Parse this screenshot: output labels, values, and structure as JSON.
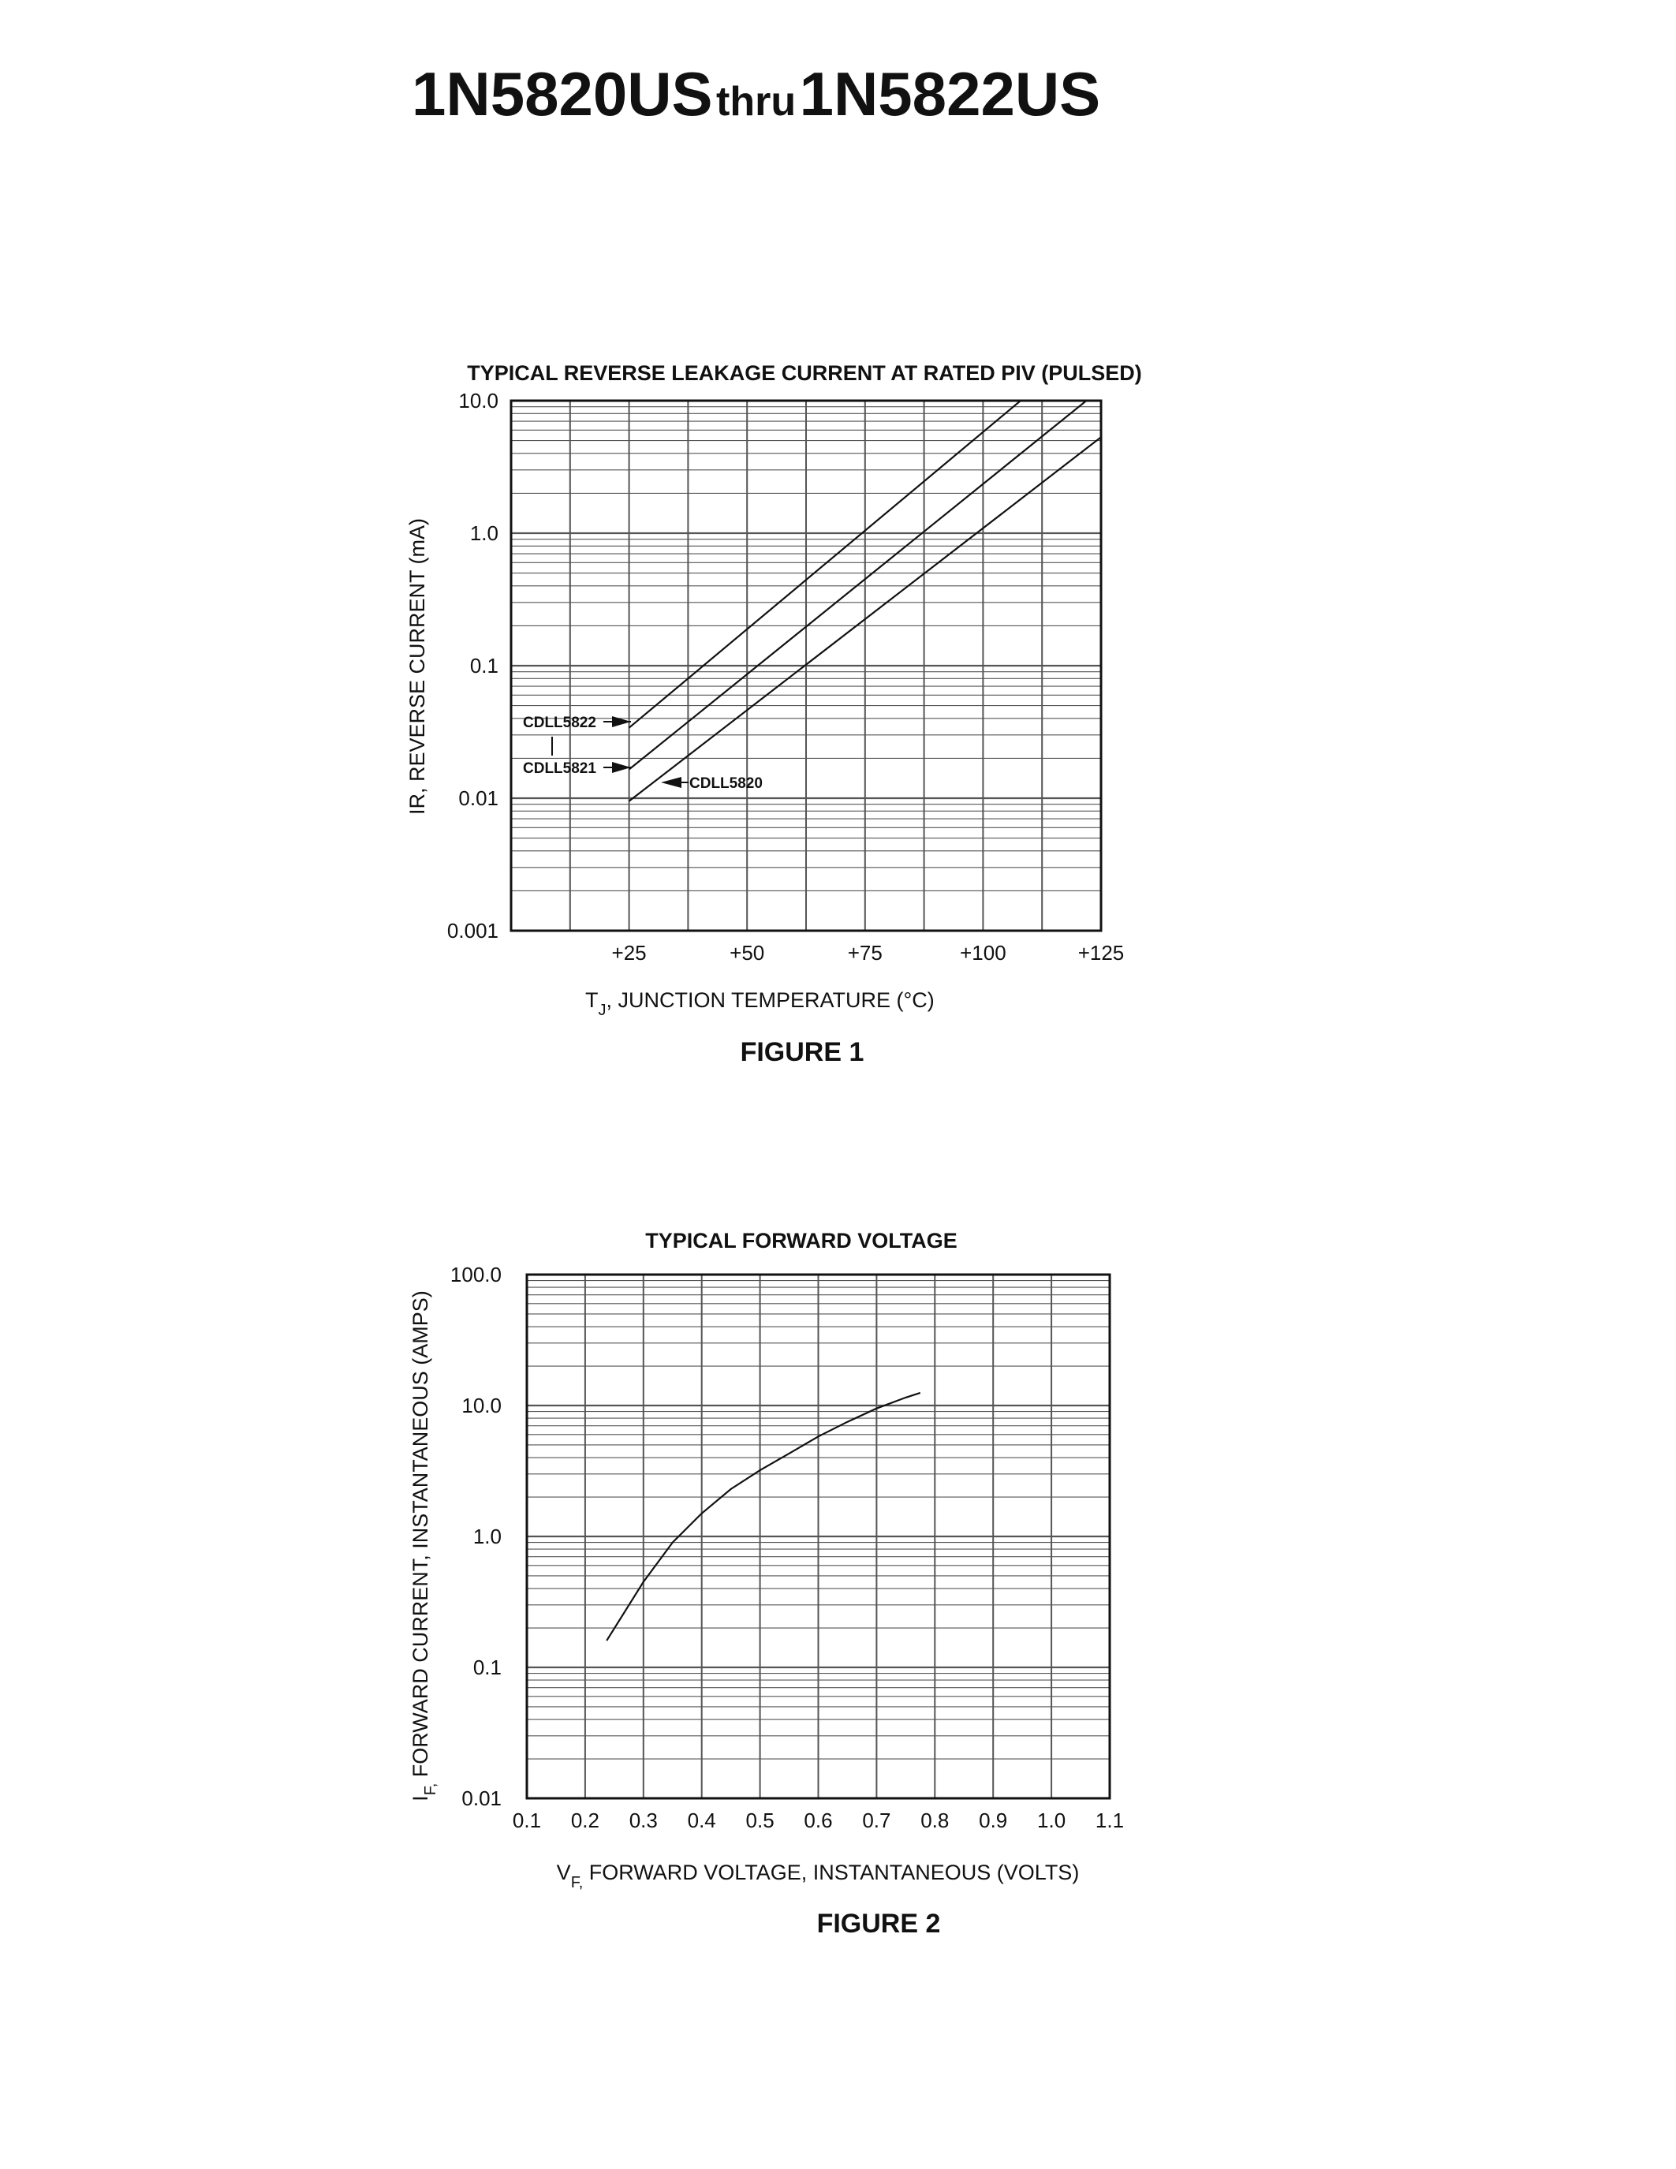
{
  "header": {
    "part_a": "1N5820US",
    "connector": "thru",
    "part_b": "1N5822US"
  },
  "chart_data": [
    {
      "type": "line",
      "title": "TYPICAL REVERSE LEAKAGE CURRENT AT RATED PIV (PULSED)",
      "xlabel": "T",
      "xlabel_sub": "J",
      "xlabel_rest": ", JUNCTION TEMPERATURE (°C)",
      "ylabel": "IR, REVERSE CURRENT (mA)",
      "yscale": "log",
      "xlim": [
        0,
        125
      ],
      "ylim": [
        0.001,
        10.0
      ],
      "x_ticks": [
        {
          "value": 25,
          "label": "+25"
        },
        {
          "value": 50,
          "label": "+50"
        },
        {
          "value": 75,
          "label": "+75"
        },
        {
          "value": 100,
          "label": "+100"
        },
        {
          "value": 125,
          "label": "+125"
        }
      ],
      "y_ticks": [
        {
          "value": 10.0,
          "label": "10.0"
        },
        {
          "value": 1.0,
          "label": "1.0"
        },
        {
          "value": 0.1,
          "label": "0.1"
        },
        {
          "value": 0.01,
          "label": "0.01"
        },
        {
          "value": 0.001,
          "label": "0.001"
        }
      ],
      "grid": true,
      "series": [
        {
          "name": "CDLL5822",
          "points": [
            [
              25,
              0.034
            ],
            [
              110,
              11.5
            ]
          ]
        },
        {
          "name": "CDLL5821",
          "points": [
            [
              25,
              0.0165
            ],
            [
              124,
              11.5
            ]
          ]
        },
        {
          "name": "CDLL5820",
          "points": [
            [
              25,
              0.0095
            ],
            [
              125,
              5.3
            ]
          ]
        }
      ],
      "caption": "FIGURE 1"
    },
    {
      "type": "line",
      "title": "TYPICAL FORWARD VOLTAGE",
      "xlabel": "V",
      "xlabel_sub": "F,",
      "xlabel_rest": " FORWARD VOLTAGE, INSTANTANEOUS (VOLTS)",
      "ylabel": "I",
      "ylabel_sub": "F,",
      "ylabel_rest": " FORWARD CURRENT, INSTANTANEOUS (AMPS)",
      "yscale": "log",
      "xlim": [
        0.1,
        1.1
      ],
      "ylim": [
        0.01,
        100.0
      ],
      "x_ticks": [
        {
          "value": 0.1,
          "label": "0.1"
        },
        {
          "value": 0.2,
          "label": "0.2"
        },
        {
          "value": 0.3,
          "label": "0.3"
        },
        {
          "value": 0.4,
          "label": "0.4"
        },
        {
          "value": 0.5,
          "label": "0.5"
        },
        {
          "value": 0.6,
          "label": "0.6"
        },
        {
          "value": 0.7,
          "label": "0.7"
        },
        {
          "value": 0.8,
          "label": "0.8"
        },
        {
          "value": 0.9,
          "label": "0.9"
        },
        {
          "value": 1.0,
          "label": "1.0"
        },
        {
          "value": 1.1,
          "label": "1.1"
        }
      ],
      "y_ticks": [
        {
          "value": 100.0,
          "label": "100.0"
        },
        {
          "value": 10.0,
          "label": "10.0"
        },
        {
          "value": 1.0,
          "label": "1.0"
        },
        {
          "value": 0.1,
          "label": "0.1"
        },
        {
          "value": 0.01,
          "label": "0.01"
        }
      ],
      "grid": true,
      "series": [
        {
          "points": [
            [
              0.237,
              0.16
            ],
            [
              0.3,
              0.45
            ],
            [
              0.35,
              0.9
            ],
            [
              0.4,
              1.5
            ],
            [
              0.45,
              2.3
            ],
            [
              0.5,
              3.2
            ],
            [
              0.55,
              4.3
            ],
            [
              0.6,
              5.8
            ],
            [
              0.65,
              7.5
            ],
            [
              0.7,
              9.5
            ],
            [
              0.75,
              11.5
            ],
            [
              0.775,
              12.5
            ]
          ]
        }
      ],
      "caption": "FIGURE 2"
    }
  ]
}
